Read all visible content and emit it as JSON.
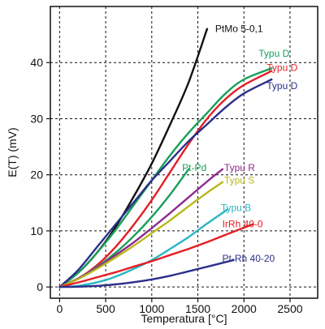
{
  "chart_data": {
    "type": "line",
    "title": "",
    "xlabel": "Temperatura [°C]",
    "ylabel": "E(T) (mV)",
    "xlim": [
      -100,
      2800
    ],
    "ylim": [
      -2,
      50
    ],
    "xticks": [
      0,
      500,
      1000,
      1500,
      2000,
      2500
    ],
    "yticks": [
      0,
      10,
      20,
      30,
      40
    ],
    "grid": true,
    "legend": "none",
    "series": [
      {
        "name": "PtMo 5-0,1",
        "color": "#111111",
        "x": [
          0,
          200,
          400,
          600,
          800,
          1000,
          1200,
          1400,
          1600
        ],
        "y": [
          0,
          2.5,
          6,
          10.5,
          16,
          22,
          29,
          36.5,
          46
        ]
      },
      {
        "name": "Typu D",
        "color": "#17a05a",
        "x": [
          0,
          200,
          400,
          600,
          800,
          1000,
          1200,
          1400,
          1600,
          1800,
          2000,
          2300
        ],
        "y": [
          0,
          2.5,
          6,
          10,
          14.5,
          19,
          23.5,
          27.5,
          31,
          34.5,
          37,
          39
        ]
      },
      {
        "name": "Typu D",
        "color": "#e41e26",
        "x": [
          0,
          200,
          400,
          600,
          800,
          1000,
          1200,
          1400,
          1600,
          1800,
          2000,
          2300
        ],
        "y": [
          0,
          1.5,
          3.8,
          7,
          11,
          15.5,
          20.5,
          25.5,
          30,
          33.5,
          36,
          38.5
        ]
      },
      {
        "name": "Typu D",
        "color": "#2b2f8a",
        "x": [
          0,
          200,
          400,
          600,
          800,
          1000,
          1200,
          1400,
          1600,
          1800,
          2000,
          2300
        ],
        "y": [
          0,
          3,
          7,
          11,
          15,
          19,
          22.5,
          26,
          29,
          32,
          34.5,
          37
        ]
      },
      {
        "name": "Pt-Pd",
        "color": "#17a05a",
        "x": [
          0,
          200,
          400,
          600,
          800,
          1000,
          1200,
          1400
        ],
        "y": [
          0,
          1.5,
          3.5,
          6,
          9,
          12.5,
          16.5,
          21
        ]
      },
      {
        "name": "Typu R",
        "color": "#8e2a8e",
        "x": [
          0,
          200,
          400,
          600,
          800,
          1000,
          1200,
          1400,
          1600,
          1768
        ],
        "y": [
          0,
          1.5,
          3.4,
          5.6,
          7.9,
          10.5,
          13.2,
          16,
          18.8,
          21
        ]
      },
      {
        "name": "Typu S",
        "color": "#b8b818",
        "x": [
          0,
          200,
          400,
          600,
          800,
          1000,
          1200,
          1400,
          1600,
          1768
        ],
        "y": [
          0,
          1.4,
          3.2,
          5.2,
          7.3,
          9.6,
          11.9,
          14.4,
          16.8,
          18.7
        ]
      },
      {
        "name": "Typu B",
        "color": "#27b7c4",
        "x": [
          0,
          200,
          400,
          600,
          800,
          1000,
          1200,
          1400,
          1600,
          1820
        ],
        "y": [
          0,
          0.2,
          0.8,
          1.8,
          3.2,
          4.8,
          6.8,
          8.9,
          11.3,
          13.8
        ]
      },
      {
        "name": "IrRh 40-0",
        "color": "#e41e26",
        "x": [
          0,
          200,
          400,
          600,
          800,
          1000,
          1200,
          1400,
          1600,
          1800,
          2100
        ],
        "y": [
          0,
          0.8,
          1.7,
          2.6,
          3.6,
          4.6,
          5.7,
          6.8,
          8,
          9.3,
          11.2
        ]
      },
      {
        "name": "Pt-Rh 40-20",
        "color": "#2b2f8a",
        "x": [
          0,
          200,
          400,
          600,
          800,
          1000,
          1200,
          1400,
          1600,
          1888
        ],
        "y": [
          0,
          0.05,
          0.2,
          0.45,
          0.85,
          1.35,
          2,
          2.8,
          3.6,
          4.8
        ]
      }
    ]
  }
}
